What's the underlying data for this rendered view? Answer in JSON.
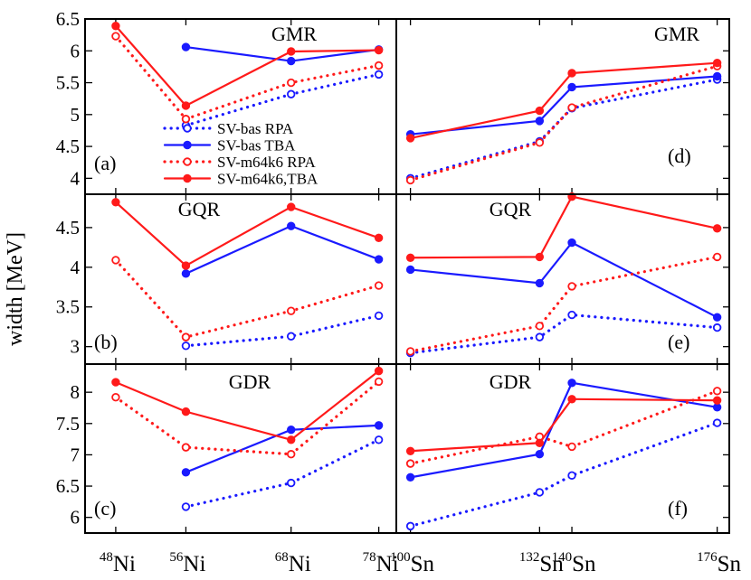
{
  "figure": {
    "ylabel": "width [MeV]",
    "colors": {
      "blue": "#1a1aff",
      "red": "#ff1a1a",
      "frame": "#000000"
    }
  },
  "chart_data": [
    {
      "id": "a",
      "panel_label": "(a)",
      "title": "GMR",
      "type": "line",
      "categories": [
        {
          "mass": "48",
          "symbol": "Ni",
          "x": 48
        },
        {
          "mass": "56",
          "symbol": "Ni",
          "x": 56
        },
        {
          "mass": "68",
          "symbol": "Ni",
          "x": 68
        },
        {
          "mass": "78",
          "symbol": "Ni",
          "x": 78
        }
      ],
      "xlim": [
        44.5,
        80
      ],
      "ylim": [
        3.75,
        6.5
      ],
      "yticks": [
        4,
        4.5,
        5,
        5.5,
        6,
        6.5
      ],
      "ytick_labels": [
        "4",
        "4.5",
        "5",
        "5.5",
        "6",
        "6.5"
      ],
      "legend": "center",
      "series": [
        {
          "name": "SV-bas RPA",
          "color": "blue",
          "style": "dotted",
          "marker": "open",
          "values": [
            null,
            4.83,
            5.32,
            5.63
          ]
        },
        {
          "name": "SV-bas TBA",
          "color": "blue",
          "style": "solid",
          "marker": "filled",
          "values": [
            null,
            6.06,
            5.84,
            6.02
          ]
        },
        {
          "name": "SV-m64k6 RPA",
          "color": "red",
          "style": "dotted",
          "marker": "open",
          "values": [
            6.23,
            4.93,
            5.5,
            5.77
          ]
        },
        {
          "name": "SV-m64k6,TBA",
          "color": "red",
          "style": "solid",
          "marker": "filled",
          "values": [
            6.39,
            5.14,
            5.99,
            6.01
          ]
        }
      ]
    },
    {
      "id": "d",
      "panel_label": "(d)",
      "title": "GMR",
      "type": "line",
      "categories": [
        {
          "mass": "100",
          "symbol": "Sn",
          "x": 100
        },
        {
          "mass": "132",
          "symbol": "Sn",
          "x": 132
        },
        {
          "mass": "140",
          "symbol": "Sn",
          "x": 140
        },
        {
          "mass": "176",
          "symbol": "Sn",
          "x": 176
        }
      ],
      "xlim": [
        96.5,
        179
      ],
      "ylim": [
        3.75,
        6.5
      ],
      "series": [
        {
          "name": "SV-bas RPA",
          "color": "blue",
          "style": "dotted",
          "marker": "open",
          "values": [
            4.0,
            4.58,
            5.1,
            5.55
          ]
        },
        {
          "name": "SV-bas TBA",
          "color": "blue",
          "style": "solid",
          "marker": "filled",
          "values": [
            4.69,
            4.9,
            5.43,
            5.6
          ]
        },
        {
          "name": "SV-m64k6 RPA",
          "color": "red",
          "style": "dotted",
          "marker": "open",
          "values": [
            3.97,
            4.56,
            5.11,
            5.76
          ]
        },
        {
          "name": "SV-m64k6,TBA",
          "color": "red",
          "style": "solid",
          "marker": "filled",
          "values": [
            4.63,
            5.06,
            5.65,
            5.81
          ]
        }
      ]
    },
    {
      "id": "b",
      "panel_label": "(b)",
      "title": "GQR",
      "type": "line",
      "categories": [
        {
          "mass": "48",
          "symbol": "Ni",
          "x": 48
        },
        {
          "mass": "56",
          "symbol": "Ni",
          "x": 56
        },
        {
          "mass": "68",
          "symbol": "Ni",
          "x": 68
        },
        {
          "mass": "78",
          "symbol": "Ni",
          "x": 78
        }
      ],
      "xlim": [
        44.5,
        80
      ],
      "ylim": [
        2.78,
        4.92
      ],
      "yticks": [
        3,
        3.5,
        4,
        4.5
      ],
      "ytick_labels": [
        "3",
        "3.5",
        "4",
        "4.5"
      ],
      "series": [
        {
          "name": "SV-bas RPA",
          "color": "blue",
          "style": "dotted",
          "marker": "open",
          "values": [
            null,
            3.01,
            3.13,
            3.39
          ]
        },
        {
          "name": "SV-bas TBA",
          "color": "blue",
          "style": "solid",
          "marker": "filled",
          "values": [
            null,
            3.92,
            4.52,
            4.1
          ]
        },
        {
          "name": "SV-m64k6 RPA",
          "color": "red",
          "style": "dotted",
          "marker": "open",
          "values": [
            4.09,
            3.12,
            3.45,
            3.77
          ]
        },
        {
          "name": "SV-m64k6,TBA",
          "color": "red",
          "style": "solid",
          "marker": "filled",
          "values": [
            4.82,
            4.02,
            4.76,
            4.37
          ]
        }
      ]
    },
    {
      "id": "e",
      "panel_label": "(e)",
      "title": "GQR",
      "type": "line",
      "categories": [
        {
          "mass": "100",
          "symbol": "Sn",
          "x": 100
        },
        {
          "mass": "132",
          "symbol": "Sn",
          "x": 132
        },
        {
          "mass": "140",
          "symbol": "Sn",
          "x": 140
        },
        {
          "mass": "176",
          "symbol": "Sn",
          "x": 176
        }
      ],
      "xlim": [
        96.5,
        179
      ],
      "ylim": [
        2.78,
        4.92
      ],
      "series": [
        {
          "name": "SV-bas RPA",
          "color": "blue",
          "style": "dotted",
          "marker": "open",
          "values": [
            2.92,
            3.12,
            3.4,
            3.24
          ]
        },
        {
          "name": "SV-bas TBA",
          "color": "blue",
          "style": "solid",
          "marker": "filled",
          "values": [
            3.97,
            3.8,
            4.31,
            3.37
          ]
        },
        {
          "name": "SV-m64k6 RPA",
          "color": "red",
          "style": "dotted",
          "marker": "open",
          "values": [
            2.94,
            3.26,
            3.76,
            4.13
          ]
        },
        {
          "name": "SV-m64k6,TBA",
          "color": "red",
          "style": "solid",
          "marker": "filled",
          "values": [
            4.12,
            4.13,
            4.89,
            4.49
          ]
        }
      ]
    },
    {
      "id": "c",
      "panel_label": "(c)",
      "title": "GDR",
      "type": "line",
      "categories": [
        {
          "mass": "48",
          "symbol": "Ni",
          "x": 48
        },
        {
          "mass": "56",
          "symbol": "Ni",
          "x": 56
        },
        {
          "mass": "68",
          "symbol": "Ni",
          "x": 68
        },
        {
          "mass": "78",
          "symbol": "Ni",
          "x": 78
        }
      ],
      "xlim": [
        44.5,
        80
      ],
      "ylim": [
        5.75,
        8.45
      ],
      "yticks": [
        6,
        6.5,
        7,
        7.5,
        8
      ],
      "ytick_labels": [
        "6",
        "6.5",
        "7",
        "7.5",
        "8"
      ],
      "series": [
        {
          "name": "SV-bas RPA",
          "color": "blue",
          "style": "dotted",
          "marker": "open",
          "values": [
            null,
            6.17,
            6.55,
            7.24
          ]
        },
        {
          "name": "SV-bas TBA",
          "color": "blue",
          "style": "solid",
          "marker": "filled",
          "values": [
            null,
            6.72,
            7.4,
            7.47
          ]
        },
        {
          "name": "SV-m64k6 RPA",
          "color": "red",
          "style": "dotted",
          "marker": "open",
          "values": [
            7.92,
            7.12,
            7.01,
            8.17
          ]
        },
        {
          "name": "SV-m64k6,TBA",
          "color": "red",
          "style": "solid",
          "marker": "filled",
          "values": [
            8.16,
            7.69,
            7.24,
            8.34
          ]
        }
      ]
    },
    {
      "id": "f",
      "panel_label": "(f)",
      "title": "GDR",
      "type": "line",
      "categories": [
        {
          "mass": "100",
          "symbol": "Sn",
          "x": 100
        },
        {
          "mass": "132",
          "symbol": "Sn",
          "x": 132
        },
        {
          "mass": "140",
          "symbol": "Sn",
          "x": 140
        },
        {
          "mass": "176",
          "symbol": "Sn",
          "x": 176
        }
      ],
      "xlim": [
        96.5,
        179
      ],
      "ylim": [
        5.75,
        8.45
      ],
      "series": [
        {
          "name": "SV-bas RPA",
          "color": "blue",
          "style": "dotted",
          "marker": "open",
          "values": [
            5.86,
            6.4,
            6.67,
            7.51
          ]
        },
        {
          "name": "SV-bas TBA",
          "color": "blue",
          "style": "solid",
          "marker": "filled",
          "values": [
            6.64,
            7.01,
            8.15,
            7.76
          ]
        },
        {
          "name": "SV-m64k6 RPA",
          "color": "red",
          "style": "dotted",
          "marker": "open",
          "values": [
            6.86,
            7.29,
            7.13,
            8.02
          ]
        },
        {
          "name": "SV-m64k6,TBA",
          "color": "red",
          "style": "solid",
          "marker": "filled",
          "values": [
            7.06,
            7.19,
            7.89,
            7.87
          ]
        }
      ]
    }
  ]
}
